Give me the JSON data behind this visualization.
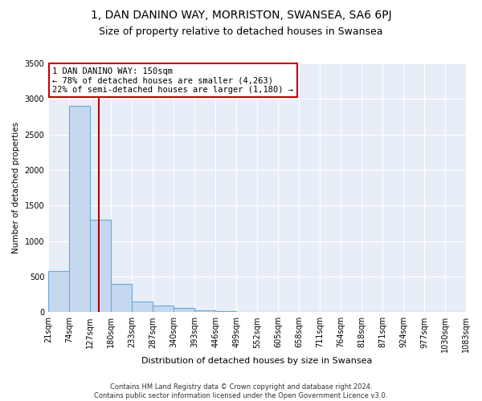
{
  "title1": "1, DAN DANINO WAY, MORRISTON, SWANSEA, SA6 6PJ",
  "title2": "Size of property relative to detached houses in Swansea",
  "xlabel": "Distribution of detached houses by size in Swansea",
  "ylabel": "Number of detached properties",
  "footer1": "Contains HM Land Registry data © Crown copyright and database right 2024.",
  "footer2": "Contains public sector information licensed under the Open Government Licence v3.0.",
  "annotation_title": "1 DAN DANINO WAY: 150sqm",
  "annotation_line1": "← 78% of detached houses are smaller (4,263)",
  "annotation_line2": "22% of semi-detached houses are larger (1,180) →",
  "bar_values": [
    575,
    2900,
    1300,
    400,
    155,
    90,
    55,
    30,
    15,
    8,
    4,
    2,
    1,
    1,
    0,
    0,
    0,
    0,
    0,
    0
  ],
  "bin_edges": [
    21,
    74,
    127,
    180,
    233,
    287,
    340,
    393,
    446,
    499,
    552,
    605,
    658,
    711,
    764,
    818,
    871,
    924,
    977,
    1030,
    1083
  ],
  "bar_color": "#c5d8f0",
  "bar_edgecolor": "#6aaad4",
  "vline_x": 150,
  "vline_color": "#aa0000",
  "annotation_box_edgecolor": "#cc0000",
  "ylim": [
    0,
    3500
  ],
  "yticks": [
    0,
    500,
    1000,
    1500,
    2000,
    2500,
    3000,
    3500
  ],
  "bg_color": "#e8eef8",
  "grid_color": "#ffffff",
  "title1_fontsize": 10,
  "title2_fontsize": 9,
  "xlabel_fontsize": 8,
  "ylabel_fontsize": 7.5,
  "tick_fontsize": 7,
  "footer_fontsize": 6
}
